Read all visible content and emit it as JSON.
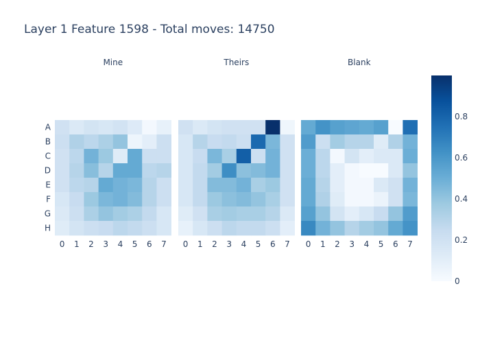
{
  "chart_data": {
    "type": "heatmap",
    "title": "Layer 1 Feature 1598 - Total moves: 14750",
    "rows": [
      "A",
      "B",
      "C",
      "D",
      "E",
      "F",
      "G",
      "H"
    ],
    "columns": [
      "0",
      "1",
      "2",
      "3",
      "4",
      "5",
      "6",
      "7"
    ],
    "colorscale": "Blues",
    "colorbar": {
      "range": [
        0,
        1
      ],
      "ticks": [
        0,
        0.2,
        0.4,
        0.6,
        0.8
      ]
    },
    "panels": [
      {
        "name": "Mine",
        "values": [
          [
            0.2,
            0.14,
            0.18,
            0.16,
            0.19,
            0.13,
            0.02,
            0.08
          ],
          [
            0.22,
            0.32,
            0.28,
            0.33,
            0.4,
            0.05,
            0.1,
            0.22
          ],
          [
            0.2,
            0.28,
            0.48,
            0.38,
            0.12,
            0.52,
            0.22,
            0.22
          ],
          [
            0.2,
            0.3,
            0.43,
            0.3,
            0.52,
            0.52,
            0.28,
            0.3
          ],
          [
            0.2,
            0.28,
            0.3,
            0.52,
            0.48,
            0.46,
            0.3,
            0.22
          ],
          [
            0.16,
            0.24,
            0.38,
            0.46,
            0.48,
            0.44,
            0.3,
            0.22
          ],
          [
            0.14,
            0.22,
            0.33,
            0.4,
            0.36,
            0.33,
            0.26,
            0.16
          ],
          [
            0.12,
            0.18,
            0.22,
            0.24,
            0.28,
            0.26,
            0.22,
            0.16
          ]
        ]
      },
      {
        "name": "Theirs",
        "values": [
          [
            0.2,
            0.14,
            0.18,
            0.2,
            0.2,
            0.2,
            1.0,
            0.04
          ],
          [
            0.16,
            0.3,
            0.24,
            0.26,
            0.22,
            0.78,
            0.46,
            0.2
          ],
          [
            0.16,
            0.24,
            0.46,
            0.34,
            0.82,
            0.22,
            0.48,
            0.2
          ],
          [
            0.16,
            0.26,
            0.36,
            0.64,
            0.42,
            0.44,
            0.48,
            0.2
          ],
          [
            0.16,
            0.26,
            0.44,
            0.44,
            0.48,
            0.34,
            0.38,
            0.2
          ],
          [
            0.16,
            0.26,
            0.38,
            0.42,
            0.44,
            0.4,
            0.34,
            0.2
          ],
          [
            0.12,
            0.2,
            0.34,
            0.36,
            0.34,
            0.34,
            0.3,
            0.14
          ],
          [
            0.08,
            0.16,
            0.22,
            0.28,
            0.26,
            0.26,
            0.22,
            0.1
          ]
        ]
      },
      {
        "name": "Blank",
        "values": [
          [
            0.52,
            0.62,
            0.56,
            0.54,
            0.52,
            0.56,
            0.0,
            0.76
          ],
          [
            0.58,
            0.22,
            0.36,
            0.3,
            0.3,
            0.12,
            0.32,
            0.48
          ],
          [
            0.5,
            0.28,
            0.02,
            0.18,
            0.1,
            0.14,
            0.14,
            0.5
          ],
          [
            0.5,
            0.28,
            0.1,
            0.02,
            0.0,
            0.0,
            0.14,
            0.4
          ],
          [
            0.52,
            0.3,
            0.1,
            0.02,
            0.02,
            0.14,
            0.2,
            0.48
          ],
          [
            0.52,
            0.32,
            0.12,
            0.02,
            0.02,
            0.06,
            0.2,
            0.46
          ],
          [
            0.56,
            0.4,
            0.18,
            0.1,
            0.16,
            0.24,
            0.4,
            0.58
          ],
          [
            0.66,
            0.48,
            0.4,
            0.3,
            0.36,
            0.4,
            0.52,
            0.62
          ]
        ]
      }
    ]
  }
}
